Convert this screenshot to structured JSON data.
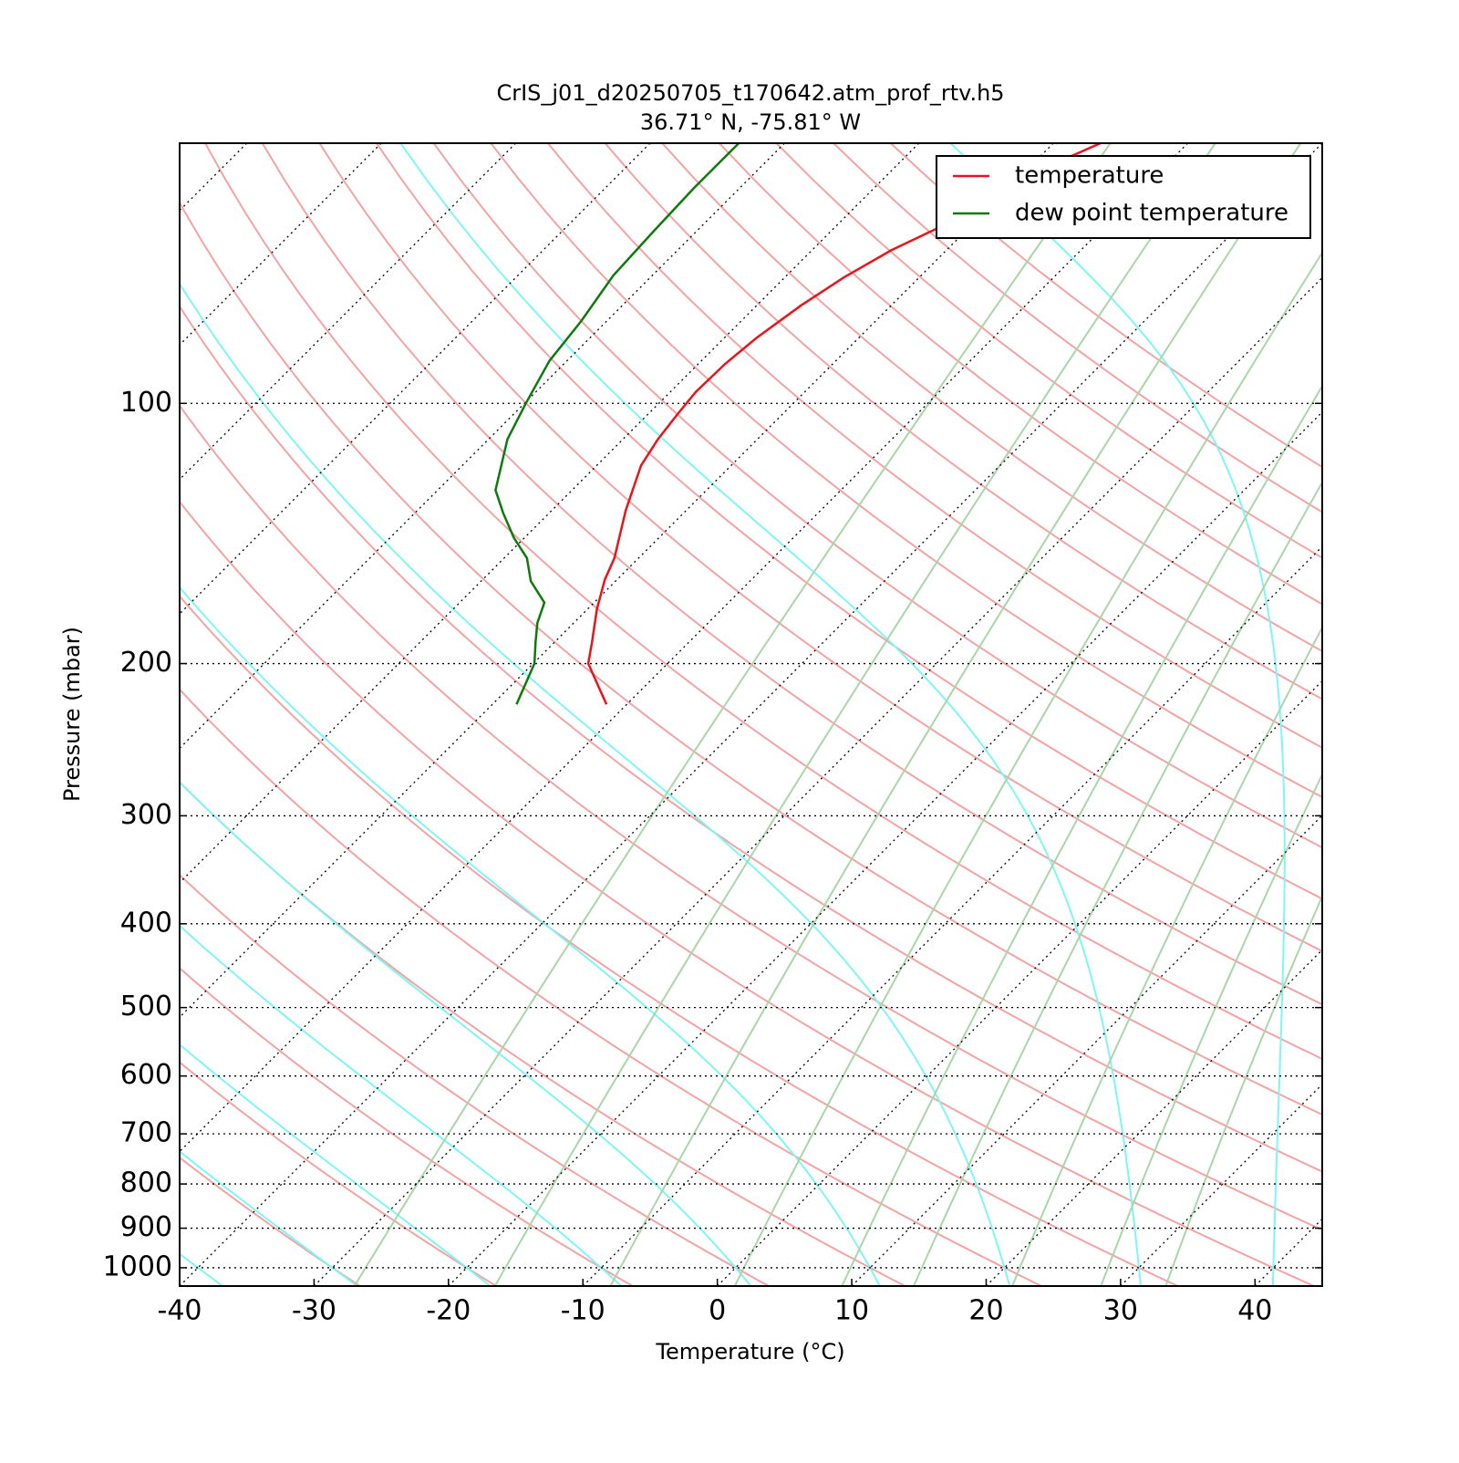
{
  "chart_data": {
    "type": "skewt",
    "title": "CrIS_j01_d20250705_t170642.atm_prof_rtv.h5",
    "subtitle": "36.71° N, -75.81° W",
    "x_label": "Temperature (°C)",
    "y_label": "Pressure (mbar)",
    "xlim": [
      -40,
      45
    ],
    "ylim": [
      1050,
      50
    ],
    "log_y": true,
    "xticks": [
      -40,
      -30,
      -20,
      -10,
      0,
      10,
      20,
      30,
      40
    ],
    "yticks": [
      100,
      200,
      300,
      400,
      500,
      600,
      700,
      800,
      900,
      1000
    ],
    "grid": true,
    "legend": "upper right",
    "isotherms": [
      -120,
      -110,
      -100,
      -90,
      -80,
      -70,
      -60,
      -50,
      -40,
      -30,
      -20,
      -10,
      0,
      10,
      20,
      30,
      40
    ],
    "dry_adiabats": [
      -30,
      -20,
      -10,
      0,
      10,
      20,
      30,
      40,
      50,
      60,
      70,
      80,
      90,
      100,
      110,
      120,
      130,
      140,
      150,
      160,
      170,
      180,
      190,
      200
    ],
    "dry_adiabat_color": "#f4a3a3",
    "moist_adiabats": [
      -50,
      -40,
      -30,
      -20,
      -10,
      0,
      10,
      20,
      30,
      40
    ],
    "moist_adiabat_color": "#7ff5f5",
    "mixing_ratios": [
      0.4,
      1,
      2,
      4,
      7,
      10,
      16,
      24,
      32
    ],
    "mixing_ratio_color": "#a9d6a9",
    "series": [
      {
        "name": "temperature",
        "color": "#e8131b",
        "y": [
          223,
          200,
          189,
          173,
          160,
          151,
          133,
          118,
          110,
          103,
          97,
          90,
          84,
          77,
          71.5,
          66.5,
          62.7,
          57.2,
          52.2,
          50
        ],
        "x": [
          -51.5,
          -55.9,
          -57.2,
          -59.3,
          -60.9,
          -61.8,
          -64.5,
          -66.7,
          -67.4,
          -67.8,
          -68.1,
          -68.0,
          -67.6,
          -66.7,
          -65.6,
          -64.1,
          -62.3,
          -60.1,
          -58.0,
          -56.5
        ]
      },
      {
        "name": "dew point temperature",
        "color": "#0d7a0d",
        "y": [
          223,
          200,
          189,
          179.5,
          170,
          160.6,
          151,
          143,
          134,
          126,
          110,
          100,
          89.3,
          80.3,
          71.1,
          63,
          56.3,
          50
        ],
        "x": [
          -58.2,
          -59.9,
          -61.4,
          -62.7,
          -63.7,
          -66.3,
          -68.3,
          -70.8,
          -73.4,
          -75.7,
          -78.6,
          -79.9,
          -81.3,
          -81.9,
          -82.9,
          -83.2,
          -83.4,
          -83.4
        ]
      }
    ]
  }
}
